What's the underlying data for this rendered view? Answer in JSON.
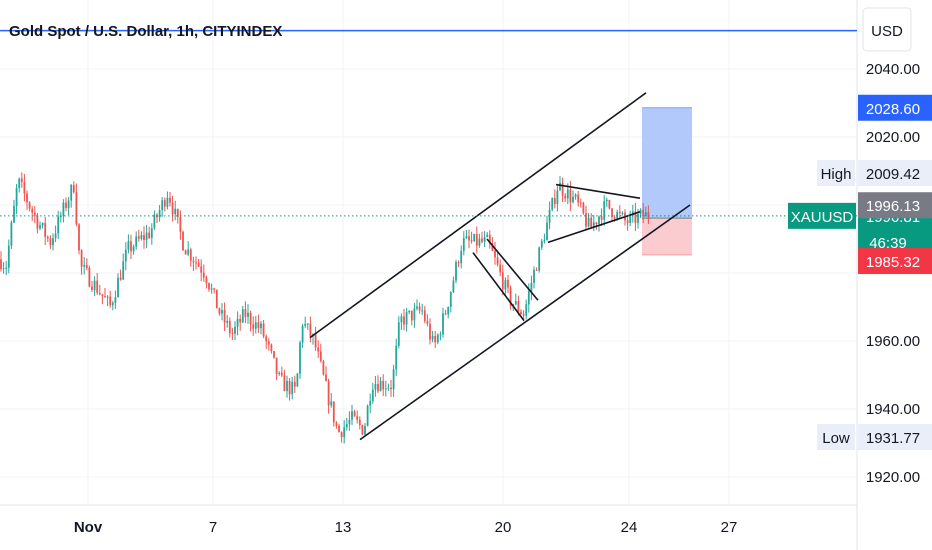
{
  "header": {
    "title": "Gold Spot / U.S. Dollar, 1h, CITYINDEX",
    "currency": "USD"
  },
  "colors": {
    "up": "#26a69a",
    "down": "#ef5350",
    "blue_line": "#2962ff",
    "target_zone": "#aac4fb",
    "stop_zone": "#fac6ca",
    "last_price_tag": "#089981",
    "grid": "#f0f3fa"
  },
  "chart_data": {
    "type": "candlestick",
    "symbol": "XAUUSD",
    "ylim": [
      1914,
      2048
    ],
    "x_ticks": [
      "Nov",
      "7",
      "13",
      "20",
      "24",
      "27"
    ],
    "y_ticks": [
      "2040.00",
      "2020.00",
      "1960.00",
      "1940.00",
      "1920.00"
    ],
    "price_tags": {
      "target": "2028.60",
      "high_label": "High",
      "high_value": "2009.42",
      "symbol_label": "XAUUSD",
      "last_price": "1996.81",
      "countdown": "46:39",
      "entry": "1996.13",
      "stop": "1985.32",
      "low_label": "Low",
      "low_value": "1931.77"
    },
    "levels": {
      "target": 2028.6,
      "entry": 1996.13,
      "stop": 1985.32,
      "last": 1996.81,
      "blue_line": 2051.3
    },
    "path_points": [
      [
        0,
        1984
      ],
      [
        6,
        1982
      ],
      [
        18,
        2007
      ],
      [
        34,
        1997
      ],
      [
        50,
        1989
      ],
      [
        74,
        2006
      ],
      [
        80,
        1982
      ],
      [
        96,
        1976
      ],
      [
        110,
        1970
      ],
      [
        128,
        1987
      ],
      [
        150,
        1992
      ],
      [
        168,
        2004
      ],
      [
        184,
        1988
      ],
      [
        205,
        1980
      ],
      [
        220,
        1968
      ],
      [
        232,
        1962
      ],
      [
        245,
        1968
      ],
      [
        262,
        1963
      ],
      [
        280,
        1948
      ],
      [
        296,
        1945
      ],
      [
        302,
        1966
      ],
      [
        314,
        1960
      ],
      [
        326,
        1946
      ],
      [
        338,
        1933
      ],
      [
        352,
        1937
      ],
      [
        364,
        1934
      ],
      [
        372,
        1948
      ],
      [
        392,
        1947
      ],
      [
        400,
        1966
      ],
      [
        422,
        1969
      ],
      [
        434,
        1958
      ],
      [
        446,
        1969
      ],
      [
        462,
        1989
      ],
      [
        488,
        1989
      ],
      [
        510,
        1972
      ],
      [
        524,
        1968
      ],
      [
        532,
        1978
      ],
      [
        544,
        1991
      ],
      [
        558,
        2006
      ],
      [
        576,
        2001
      ],
      [
        590,
        1993
      ],
      [
        606,
        2000
      ],
      [
        626,
        1995
      ],
      [
        644,
        1997
      ],
      [
        650,
        1996.8
      ]
    ],
    "drawings": [
      {
        "from": [
          310,
          1961
        ],
        "to": [
          646,
          2033
        ]
      },
      {
        "from": [
          360,
          1931
        ],
        "to": [
          690,
          2000
        ]
      },
      {
        "from": [
          473,
          1986
        ],
        "to": [
          524,
          1966
        ]
      },
      {
        "from": [
          487,
          1990
        ],
        "to": [
          538,
          1972
        ]
      },
      {
        "from": [
          556,
          2006
        ],
        "to": [
          640,
          2002
        ]
      },
      {
        "from": [
          548,
          1989
        ],
        "to": [
          640,
          1998
        ]
      }
    ],
    "position": {
      "x_start": 642,
      "x_end": 692
    }
  }
}
